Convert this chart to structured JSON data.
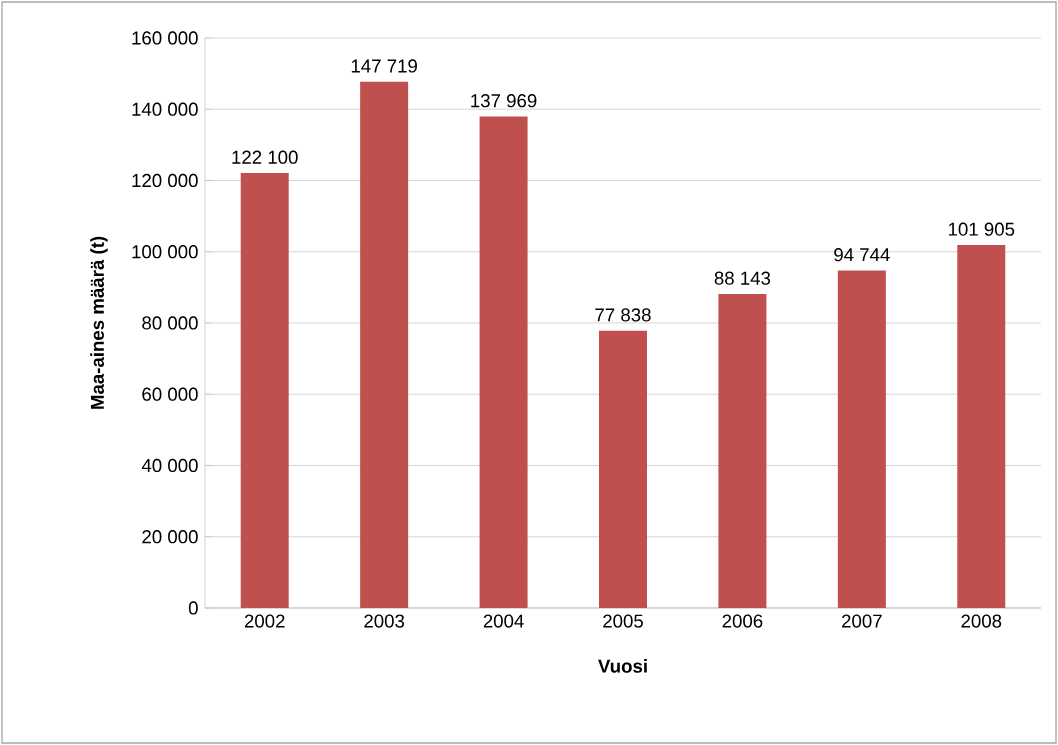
{
  "chart_data": {
    "type": "bar",
    "xlabel": "Vuosi",
    "ylabel": "Maa-aines määrä (t)",
    "categories": [
      "2002",
      "2003",
      "2004",
      "2005",
      "2006",
      "2007",
      "2008"
    ],
    "values": [
      122100,
      147719,
      137969,
      77838,
      88143,
      94744,
      101905
    ],
    "value_labels": [
      "122 100",
      "147 719",
      "137 969",
      "77 838",
      "88 143",
      "94 744",
      "101 905"
    ],
    "color": "#c0504d",
    "ylim": [
      0,
      160000
    ],
    "yticks": [
      {
        "value": 0,
        "label": "0"
      },
      {
        "value": 20000,
        "label": "20 000"
      },
      {
        "value": 40000,
        "label": "40 000"
      },
      {
        "value": 60000,
        "label": "60 000"
      },
      {
        "value": 80000,
        "label": "80 000"
      },
      {
        "value": 100000,
        "label": "100 000"
      },
      {
        "value": 120000,
        "label": "120 000"
      },
      {
        "value": 140000,
        "label": "140 000"
      },
      {
        "value": 160000,
        "label": "160 000"
      }
    ],
    "grid": "y"
  }
}
